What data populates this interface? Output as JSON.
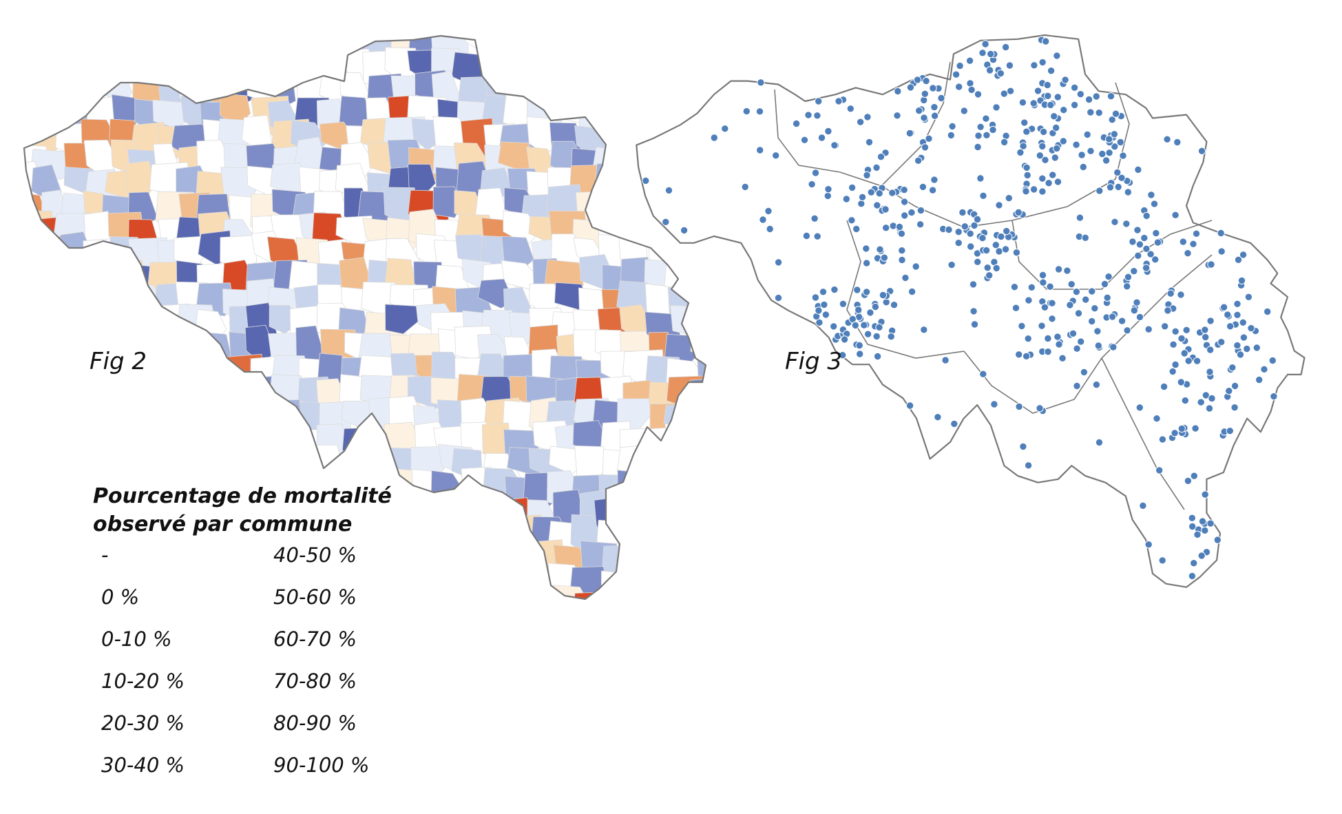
{
  "figures": {
    "fig2": {
      "label": "Fig 2"
    },
    "fig3": {
      "label": "Fig 3"
    }
  },
  "legend": {
    "title_line1": "Pourcentage de mortalité",
    "title_line2": "observé par commune",
    "items": [
      {
        "label": "-",
        "color": "#ffffff"
      },
      {
        "label": "0 %",
        "color": "#5867b0"
      },
      {
        "label": "0-10 %",
        "color": "#7d8cc6"
      },
      {
        "label": "10-20 %",
        "color": "#a5b4dc"
      },
      {
        "label": "20-30 %",
        "color": "#c8d3ec"
      },
      {
        "label": "30-40 %",
        "color": "#e7edf8"
      },
      {
        "label": "40-50 %",
        "color": "#fdf2e2"
      },
      {
        "label": "50-60 %",
        "color": "#f8dcb6"
      },
      {
        "label": "60-70 %",
        "color": "#f2bd8c"
      },
      {
        "label": "70-80 %",
        "color": "#e8925e"
      },
      {
        "label": "80-90 %",
        "color": "#e06c3e"
      },
      {
        "label": "90-100 %",
        "color": "#d84a26"
      }
    ]
  },
  "colors": {
    "outline": "#777777",
    "dot": "#4f7fba",
    "text": "#111111"
  }
}
